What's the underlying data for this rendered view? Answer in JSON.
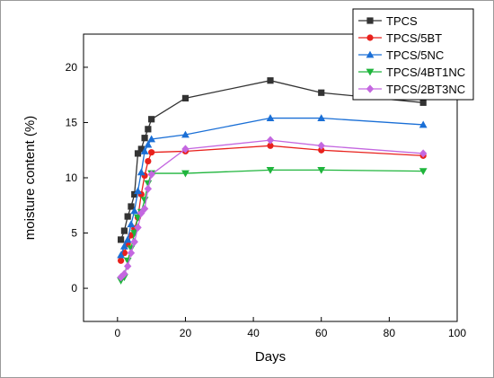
{
  "chart_data": {
    "type": "line",
    "xlabel": "Days",
    "ylabel": "moisture content (%)",
    "xlim": [
      -10,
      100
    ],
    "ylim": [
      -3,
      23
    ],
    "xticks": [
      0,
      20,
      40,
      60,
      80,
      100
    ],
    "yticks": [
      0,
      5,
      10,
      15,
      20
    ],
    "grid": false,
    "legend_position": "top-right",
    "series": [
      {
        "name": "TPCS",
        "color": "#333333",
        "marker": "square",
        "x": [
          1,
          2,
          3,
          4,
          5,
          6,
          7,
          8,
          9,
          10,
          20,
          45,
          60,
          90
        ],
        "y": [
          4.4,
          5.2,
          6.5,
          7.4,
          8.5,
          12.2,
          12.6,
          13.6,
          14.4,
          15.3,
          17.2,
          18.8,
          17.7,
          16.8
        ]
      },
      {
        "name": "TPCS/5BT",
        "color": "#e8211c",
        "marker": "circle",
        "x": [
          1,
          2,
          3,
          4,
          5,
          6,
          7,
          8,
          9,
          10,
          20,
          45,
          60,
          90
        ],
        "y": [
          2.5,
          3.2,
          4.0,
          4.8,
          5.4,
          6.4,
          8.5,
          10.2,
          11.5,
          12.3,
          12.4,
          12.9,
          12.5,
          12.0
        ]
      },
      {
        "name": "TPCS/5NC",
        "color": "#1a6fd6",
        "marker": "triangle-up",
        "x": [
          1,
          2,
          3,
          4,
          5,
          6,
          7,
          8,
          9,
          10,
          20,
          45,
          60,
          90
        ],
        "y": [
          3.0,
          3.8,
          4.4,
          5.8,
          7.0,
          8.8,
          10.5,
          12.4,
          13.0,
          13.5,
          13.9,
          15.4,
          15.4,
          14.8
        ]
      },
      {
        "name": "TPCS/4BT1NC",
        "color": "#1fb53c",
        "marker": "triangle-down",
        "x": [
          1,
          2,
          3,
          4,
          5,
          6,
          7,
          8,
          9,
          10,
          20,
          45,
          60,
          90
        ],
        "y": [
          0.7,
          1.0,
          2.5,
          3.6,
          5.0,
          6.4,
          6.9,
          8.0,
          9.5,
          10.4,
          10.4,
          10.7,
          10.7,
          10.6
        ]
      },
      {
        "name": "TPCS/2BT3NC",
        "color": "#c467e0",
        "marker": "diamond",
        "x": [
          1,
          2,
          3,
          4,
          5,
          6,
          7,
          8,
          9,
          10,
          20,
          45,
          60,
          90
        ],
        "y": [
          1.0,
          1.3,
          2.0,
          3.2,
          4.2,
          5.5,
          6.8,
          7.2,
          9.0,
          10.3,
          12.6,
          13.4,
          12.9,
          12.2
        ]
      }
    ]
  }
}
